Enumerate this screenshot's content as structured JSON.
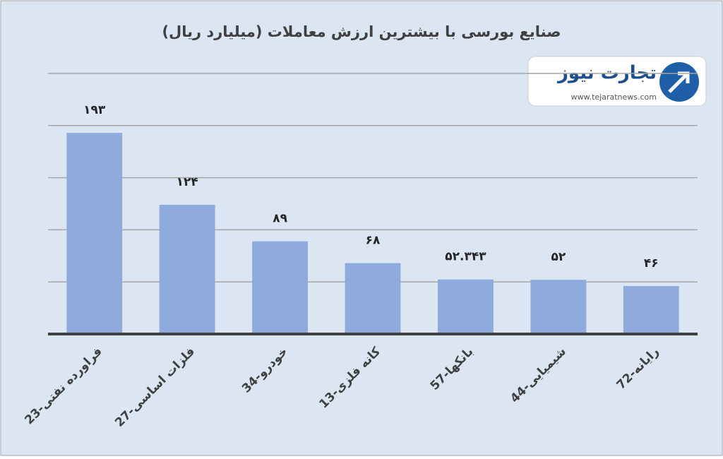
{
  "chart_data": {
    "type": "bar",
    "title": "صنایع بورسی با بیشترین ارزش معاملات  (میلیارد ریال)",
    "categories": [
      "23-فراورده نفتی",
      "27-فلزات اساسی",
      "34-خودرو",
      "13-کانه فلزی",
      "57-بانکها",
      "44-شیمیایی",
      "72-رایانه"
    ],
    "values": [
      193,
      124,
      89,
      68,
      52.343,
      52,
      46
    ],
    "value_labels": [
      "۱۹۳",
      "۱۲۴",
      "۸۹",
      "۶۸",
      "۵۲.۳۴۳",
      "۵۲",
      "۴۶"
    ],
    "color": "#8faadc",
    "ylim": [
      0,
      250
    ],
    "yticks": [
      50,
      100,
      150,
      200,
      250
    ],
    "grid": true
  },
  "watermark": {
    "name": "تجارت نیوز",
    "url": "www.tejaratnews.com"
  }
}
